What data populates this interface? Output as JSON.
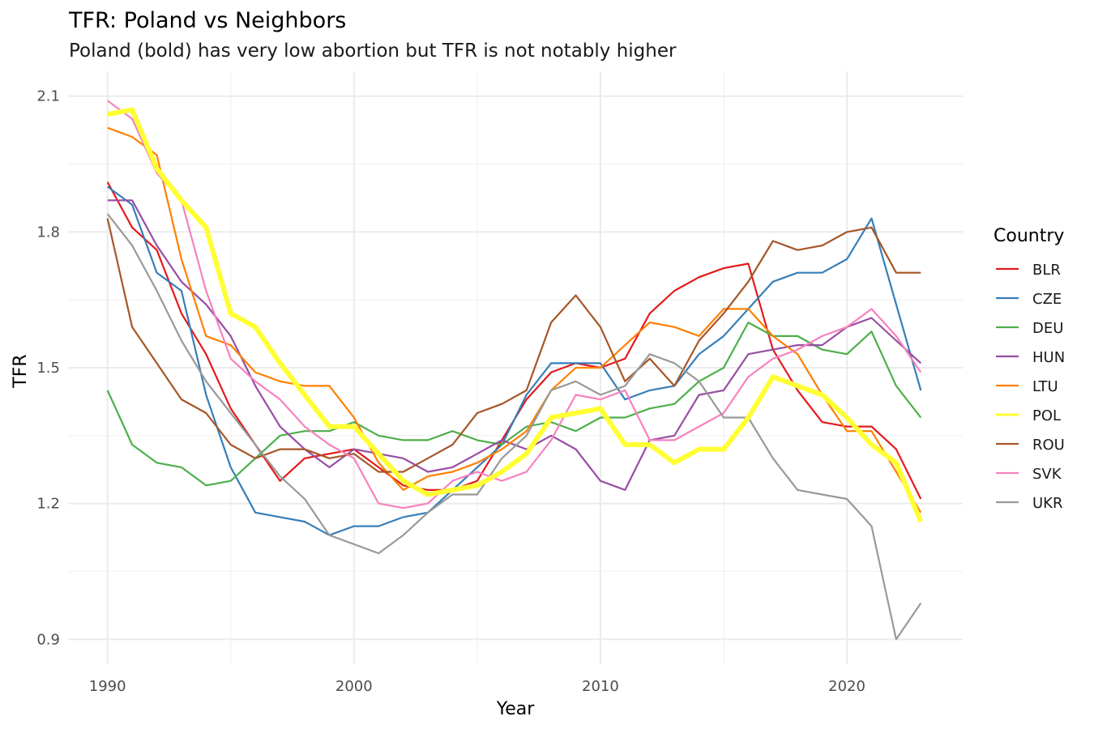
{
  "chart_data": {
    "type": "line",
    "title": "TFR: Poland vs Neighbors",
    "subtitle": "Poland (bold) has very low abortion but TFR is not notably higher",
    "xlabel": "Year",
    "ylabel": "TFR",
    "xlim": [
      1988.4,
      2024.7
    ],
    "ylim": [
      0.845,
      2.155
    ],
    "x_ticks": [
      1990,
      2000,
      2010,
      2020
    ],
    "x_tick_labels": [
      "1990",
      "2000",
      "2010",
      "2020"
    ],
    "x_minor_ticks": [
      1995,
      2005,
      2015
    ],
    "y_ticks": [
      0.9,
      1.2,
      1.5,
      1.8,
      2.1
    ],
    "y_tick_labels": [
      "0.9",
      "1.2",
      "1.5",
      "1.8",
      "2.1"
    ],
    "y_minor_ticks": [
      1.05,
      1.35,
      1.65,
      1.95
    ],
    "grid": true,
    "legend": {
      "title": "Country",
      "position": "right"
    },
    "highlight": "POL",
    "x": [
      1990,
      1991,
      1992,
      1993,
      1994,
      1995,
      1996,
      1997,
      1998,
      1999,
      2000,
      2001,
      2002,
      2003,
      2004,
      2005,
      2006,
      2007,
      2008,
      2009,
      2010,
      2011,
      2012,
      2013,
      2014,
      2015,
      2016,
      2017,
      2018,
      2019,
      2020,
      2021,
      2022,
      2023
    ],
    "series": [
      {
        "name": "BLR",
        "color": "#e41a1c",
        "values": [
          1.91,
          1.81,
          1.76,
          1.62,
          1.53,
          1.41,
          1.33,
          1.25,
          1.3,
          1.31,
          1.32,
          1.28,
          1.24,
          1.23,
          1.23,
          1.25,
          1.34,
          1.43,
          1.49,
          1.51,
          1.5,
          1.52,
          1.62,
          1.67,
          1.7,
          1.72,
          1.73,
          1.54,
          1.45,
          1.38,
          1.37,
          1.37,
          1.32,
          1.21
        ]
      },
      {
        "name": "CZE",
        "color": "#377eb8",
        "values": [
          1.9,
          1.86,
          1.71,
          1.67,
          1.44,
          1.28,
          1.18,
          1.17,
          1.16,
          1.13,
          1.15,
          1.15,
          1.17,
          1.18,
          1.23,
          1.28,
          1.33,
          1.44,
          1.51,
          1.51,
          1.51,
          1.43,
          1.45,
          1.46,
          1.53,
          1.57,
          1.63,
          1.69,
          1.71,
          1.71,
          1.74,
          1.83,
          1.64,
          1.45
        ]
      },
      {
        "name": "DEU",
        "color": "#4daf4a",
        "values": [
          1.45,
          1.33,
          1.29,
          1.28,
          1.24,
          1.25,
          1.3,
          1.35,
          1.36,
          1.36,
          1.38,
          1.35,
          1.34,
          1.34,
          1.36,
          1.34,
          1.33,
          1.37,
          1.38,
          1.36,
          1.39,
          1.39,
          1.41,
          1.42,
          1.47,
          1.5,
          1.6,
          1.57,
          1.57,
          1.54,
          1.53,
          1.58,
          1.46,
          1.39
        ]
      },
      {
        "name": "HUN",
        "color": "#984ea3",
        "values": [
          1.87,
          1.87,
          1.77,
          1.69,
          1.64,
          1.57,
          1.46,
          1.37,
          1.32,
          1.28,
          1.32,
          1.31,
          1.3,
          1.27,
          1.28,
          1.31,
          1.34,
          1.32,
          1.35,
          1.32,
          1.25,
          1.23,
          1.34,
          1.35,
          1.44,
          1.45,
          1.53,
          1.54,
          1.55,
          1.55,
          1.59,
          1.61,
          1.56,
          1.51
        ]
      },
      {
        "name": "LTU",
        "color": "#ff7f00",
        "values": [
          2.03,
          2.01,
          1.97,
          1.74,
          1.57,
          1.55,
          1.49,
          1.47,
          1.46,
          1.46,
          1.39,
          1.29,
          1.23,
          1.26,
          1.27,
          1.29,
          1.32,
          1.36,
          1.45,
          1.5,
          1.5,
          1.55,
          1.6,
          1.59,
          1.57,
          1.63,
          1.63,
          1.57,
          1.53,
          1.44,
          1.36,
          1.36,
          1.27,
          1.18
        ]
      },
      {
        "name": "ROU",
        "color": "#a65628",
        "values": [
          1.83,
          1.59,
          1.51,
          1.43,
          1.4,
          1.33,
          1.3,
          1.32,
          1.32,
          1.3,
          1.31,
          1.27,
          1.27,
          1.3,
          1.33,
          1.4,
          1.42,
          1.45,
          1.6,
          1.66,
          1.59,
          1.47,
          1.52,
          1.46,
          1.56,
          1.62,
          1.69,
          1.78,
          1.76,
          1.77,
          1.8,
          1.81,
          1.71,
          1.71
        ]
      },
      {
        "name": "SVK",
        "color": "#f781bf",
        "values": [
          2.09,
          2.05,
          1.93,
          1.87,
          1.67,
          1.52,
          1.47,
          1.43,
          1.37,
          1.33,
          1.3,
          1.2,
          1.19,
          1.2,
          1.25,
          1.27,
          1.25,
          1.27,
          1.34,
          1.44,
          1.43,
          1.45,
          1.34,
          1.34,
          1.37,
          1.4,
          1.48,
          1.52,
          1.54,
          1.57,
          1.59,
          1.63,
          1.57,
          1.49
        ]
      },
      {
        "name": "UKR",
        "color": "#999999",
        "values": [
          1.84,
          1.77,
          1.67,
          1.56,
          1.47,
          1.4,
          1.33,
          1.26,
          1.21,
          1.13,
          1.11,
          1.09,
          1.13,
          1.18,
          1.22,
          1.22,
          1.3,
          1.35,
          1.45,
          1.47,
          1.44,
          1.46,
          1.53,
          1.51,
          1.47,
          1.39,
          1.39,
          1.3,
          1.23,
          1.22,
          1.21,
          1.15,
          0.9,
          0.98
        ]
      },
      {
        "name": "POL",
        "color": "#ffff33",
        "values": [
          2.06,
          2.07,
          1.94,
          1.87,
          1.81,
          1.62,
          1.59,
          1.51,
          1.44,
          1.37,
          1.37,
          1.31,
          1.25,
          1.22,
          1.23,
          1.24,
          1.27,
          1.31,
          1.39,
          1.4,
          1.41,
          1.33,
          1.33,
          1.29,
          1.32,
          1.32,
          1.39,
          1.48,
          1.46,
          1.44,
          1.39,
          1.33,
          1.29,
          1.16
        ]
      }
    ],
    "legend_order": [
      "BLR",
      "CZE",
      "DEU",
      "HUN",
      "LTU",
      "POL",
      "ROU",
      "SVK",
      "UKR"
    ]
  }
}
